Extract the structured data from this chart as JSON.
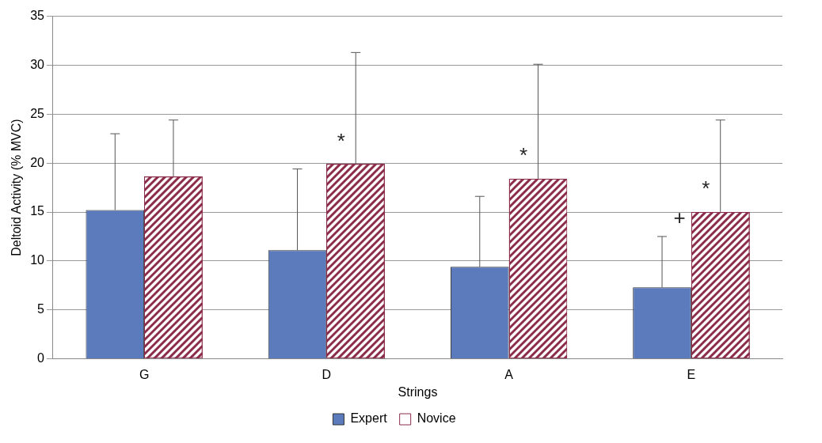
{
  "chart_data": {
    "type": "bar",
    "xlabel": "Strings",
    "ylabel": "Deltoid Activity (% MVC)",
    "categories": [
      "G",
      "D",
      "A",
      "E"
    ],
    "series": [
      {
        "name": "Expert",
        "color": "#5b7bbd",
        "values": [
          15.2,
          11.1,
          9.4,
          7.3
        ],
        "errors": [
          [
            15.2,
            23.0
          ],
          [
            11.1,
            19.4
          ],
          [
            9.4,
            16.6
          ],
          [
            7.3,
            12.5
          ]
        ]
      },
      {
        "name": "Novice",
        "color": "#8b2c4a",
        "values": [
          18.6,
          19.9,
          18.4,
          15.0
        ],
        "errors": [
          [
            18.6,
            24.4
          ],
          [
            19.9,
            31.3
          ],
          [
            18.4,
            30.1
          ],
          [
            15.0,
            24.4
          ]
        ]
      }
    ],
    "ylim": [
      0,
      35
    ],
    "yticks": [
      0,
      5,
      10,
      15,
      20,
      25,
      30,
      35
    ],
    "grid": "y",
    "legend": "bottom",
    "annotations": [
      "*",
      "*",
      "+",
      "*"
    ]
  }
}
